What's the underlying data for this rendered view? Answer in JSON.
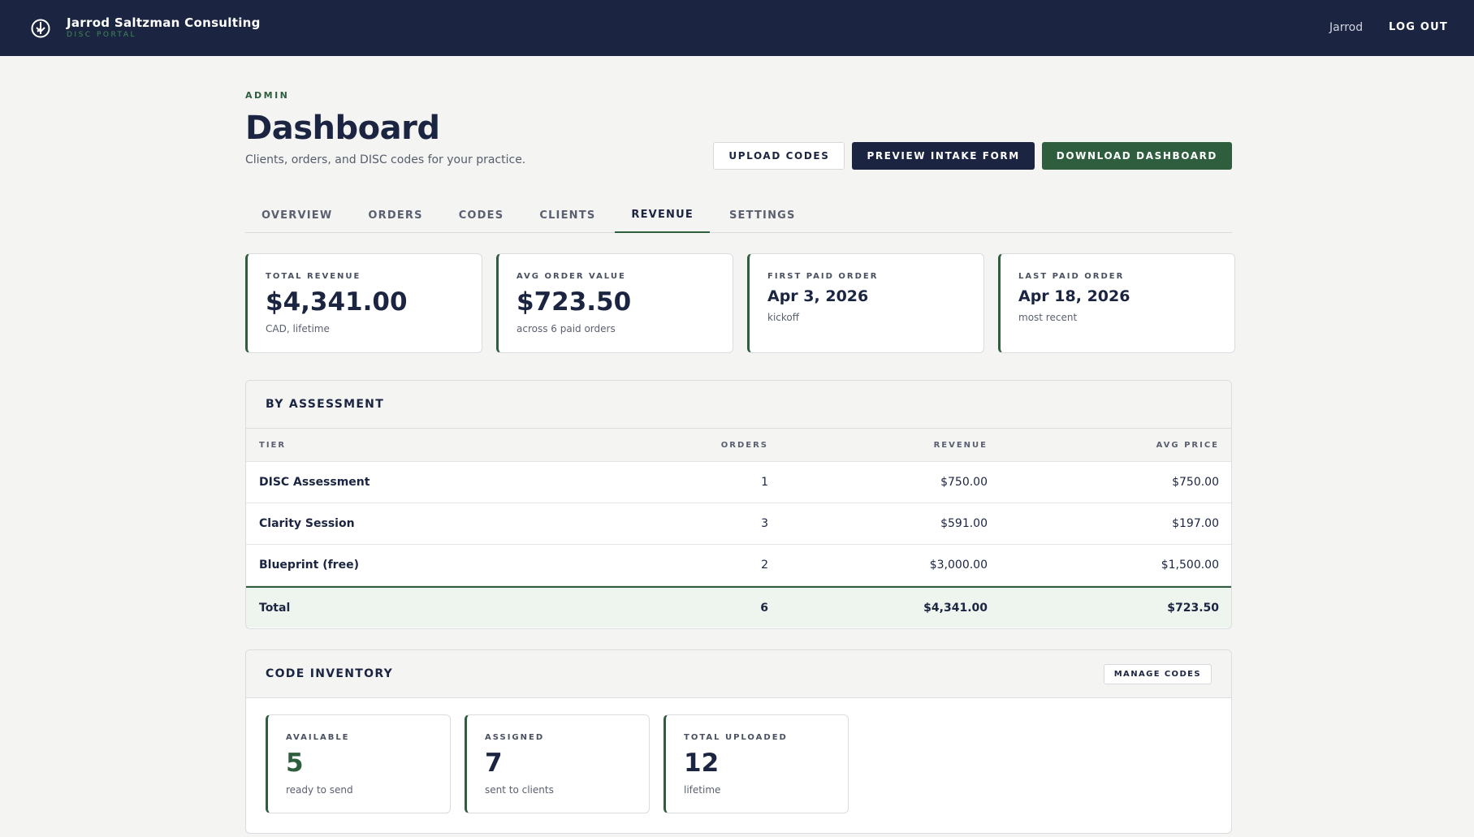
{
  "nav": {
    "brand": "Jarrod Saltzman Consulting",
    "subtitle": "DISC PORTAL",
    "user": "Jarrod",
    "logout": "LOG OUT"
  },
  "header": {
    "eyebrow": "ADMIN",
    "title": "Dashboard",
    "subtitle": "Clients, orders, and DISC codes for your practice.",
    "buttons": [
      "UPLOAD CODES",
      "PREVIEW INTAKE FORM",
      "DOWNLOAD DASHBOARD"
    ]
  },
  "tabs": {
    "items": [
      "OVERVIEW",
      "ORDERS",
      "CODES",
      "CLIENTS",
      "REVENUE",
      "SETTINGS"
    ],
    "active": 4
  },
  "kpis": [
    {
      "label": "TOTAL REVENUE",
      "value": "$4,341.00",
      "note": "CAD, lifetime"
    },
    {
      "label": "AVG ORDER VALUE",
      "value": "$723.50",
      "note": "across 6 paid orders"
    },
    {
      "label": "FIRST PAID ORDER",
      "value": "Apr 3, 2026",
      "note": "kickoff"
    },
    {
      "label": "LAST PAID ORDER",
      "value": "Apr 18, 2026",
      "note": "most recent"
    }
  ],
  "by_assessment": {
    "title": "BY ASSESSMENT",
    "columns": [
      "TIER",
      "ORDERS",
      "REVENUE",
      "AVG PRICE"
    ],
    "rows": [
      [
        "DISC Assessment",
        "1",
        "$750.00",
        "$750.00"
      ],
      [
        "Clarity Session",
        "3",
        "$591.00",
        "$197.00"
      ],
      [
        "Blueprint (free)",
        "2",
        "$3,000.00",
        "$1,500.00"
      ]
    ],
    "total": [
      "Total",
      "6",
      "$4,341.00",
      "$723.50"
    ]
  },
  "code_inventory": {
    "title": "CODE INVENTORY",
    "action": "MANAGE CODES",
    "cards": [
      {
        "label": "AVAILABLE",
        "value": "5",
        "note": "ready to send"
      },
      {
        "label": "ASSIGNED",
        "value": "7",
        "note": "sent to clients"
      },
      {
        "label": "TOTAL UPLOADED",
        "value": "12",
        "note": "lifetime"
      }
    ]
  }
}
